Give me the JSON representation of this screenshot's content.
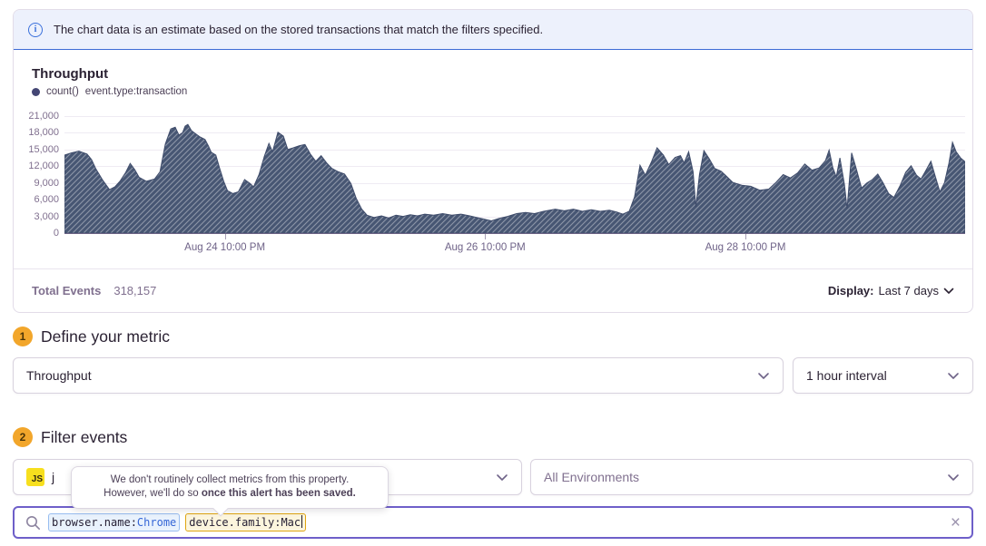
{
  "banner": {
    "text": "The chart data is an estimate based on the stored transactions that match the filters specified.",
    "icon": "info-icon"
  },
  "chart_panel": {
    "title": "Throughput",
    "legend": {
      "series_label": "count()",
      "filter_label": "event.type:transaction"
    },
    "footer": {
      "total_label": "Total Events",
      "total_value": "318,157",
      "display_label": "Display:",
      "display_value": "Last 7 days",
      "display_chevron": "chevron-down-icon"
    }
  },
  "chart_data": {
    "type": "area",
    "title": "Throughput",
    "ylabel": "",
    "xlabel": "",
    "ylim": [
      0,
      21000
    ],
    "y_ticks": [
      0,
      3000,
      6000,
      9000,
      12000,
      15000,
      18000,
      21000
    ],
    "y_tick_labels": [
      "0",
      "3,000",
      "6,000",
      "9,000",
      "12,000",
      "15,000",
      "18,000",
      "21,000"
    ],
    "x_ticks": [
      {
        "label": "Aug 24 10:00 PM",
        "pos": 0.178
      },
      {
        "label": "Aug 26 10:00 PM",
        "pos": 0.467
      },
      {
        "label": "Aug 28 10:00 PM",
        "pos": 0.756
      }
    ],
    "grid": "horizontal",
    "legend_position": "top-left",
    "style": {
      "fill": "#475673",
      "hatch": true,
      "hatch_color": "rgba(255,255,255,0.38)"
    },
    "series": [
      {
        "name": "count() event.type:transaction",
        "points": [
          [
            0.0,
            14000
          ],
          [
            0.008,
            14400
          ],
          [
            0.016,
            14700
          ],
          [
            0.025,
            14200
          ],
          [
            0.03,
            13200
          ],
          [
            0.035,
            11500
          ],
          [
            0.042,
            9600
          ],
          [
            0.05,
            7800
          ],
          [
            0.056,
            8300
          ],
          [
            0.062,
            9400
          ],
          [
            0.068,
            10900
          ],
          [
            0.073,
            12500
          ],
          [
            0.078,
            11400
          ],
          [
            0.083,
            10000
          ],
          [
            0.091,
            9300
          ],
          [
            0.1,
            9700
          ],
          [
            0.106,
            11000
          ],
          [
            0.112,
            16000
          ],
          [
            0.118,
            18700
          ],
          [
            0.123,
            19000
          ],
          [
            0.127,
            17600
          ],
          [
            0.131,
            18000
          ],
          [
            0.134,
            19200
          ],
          [
            0.137,
            19500
          ],
          [
            0.141,
            18400
          ],
          [
            0.145,
            17900
          ],
          [
            0.15,
            17300
          ],
          [
            0.156,
            16800
          ],
          [
            0.16,
            15600
          ],
          [
            0.163,
            14500
          ],
          [
            0.168,
            14000
          ],
          [
            0.172,
            11800
          ],
          [
            0.177,
            9200
          ],
          [
            0.181,
            7600
          ],
          [
            0.187,
            7100
          ],
          [
            0.193,
            7400
          ],
          [
            0.2,
            9600
          ],
          [
            0.206,
            8900
          ],
          [
            0.21,
            8300
          ],
          [
            0.216,
            10500
          ],
          [
            0.222,
            13800
          ],
          [
            0.227,
            16100
          ],
          [
            0.231,
            14600
          ],
          [
            0.237,
            18100
          ],
          [
            0.243,
            17400
          ],
          [
            0.248,
            15000
          ],
          [
            0.254,
            15300
          ],
          [
            0.261,
            15700
          ],
          [
            0.267,
            15900
          ],
          [
            0.273,
            14200
          ],
          [
            0.279,
            12900
          ],
          [
            0.285,
            13900
          ],
          [
            0.291,
            12600
          ],
          [
            0.297,
            11600
          ],
          [
            0.304,
            11000
          ],
          [
            0.311,
            10600
          ],
          [
            0.318,
            8900
          ],
          [
            0.324,
            6200
          ],
          [
            0.33,
            4300
          ],
          [
            0.336,
            3200
          ],
          [
            0.344,
            2800
          ],
          [
            0.352,
            3100
          ],
          [
            0.36,
            2700
          ],
          [
            0.368,
            3200
          ],
          [
            0.376,
            3000
          ],
          [
            0.384,
            3300
          ],
          [
            0.392,
            3100
          ],
          [
            0.4,
            3400
          ],
          [
            0.41,
            3200
          ],
          [
            0.42,
            3500
          ],
          [
            0.43,
            3200
          ],
          [
            0.44,
            3400
          ],
          [
            0.45,
            3100
          ],
          [
            0.458,
            2800
          ],
          [
            0.466,
            2500
          ],
          [
            0.474,
            2200
          ],
          [
            0.482,
            2600
          ],
          [
            0.492,
            3000
          ],
          [
            0.502,
            3500
          ],
          [
            0.512,
            3700
          ],
          [
            0.522,
            3500
          ],
          [
            0.532,
            3900
          ],
          [
            0.545,
            4300
          ],
          [
            0.555,
            4000
          ],
          [
            0.565,
            4300
          ],
          [
            0.575,
            3900
          ],
          [
            0.585,
            4200
          ],
          [
            0.595,
            3900
          ],
          [
            0.605,
            4100
          ],
          [
            0.613,
            3800
          ],
          [
            0.62,
            3400
          ],
          [
            0.627,
            3900
          ],
          [
            0.633,
            6500
          ],
          [
            0.639,
            12200
          ],
          [
            0.645,
            10400
          ],
          [
            0.652,
            12900
          ],
          [
            0.658,
            15300
          ],
          [
            0.665,
            14000
          ],
          [
            0.671,
            12300
          ],
          [
            0.678,
            13600
          ],
          [
            0.684,
            13900
          ],
          [
            0.688,
            12600
          ],
          [
            0.693,
            14600
          ],
          [
            0.698,
            11000
          ],
          [
            0.701,
            4700
          ],
          [
            0.705,
            10500
          ],
          [
            0.71,
            14800
          ],
          [
            0.716,
            13300
          ],
          [
            0.722,
            11600
          ],
          [
            0.729,
            11100
          ],
          [
            0.735,
            10200
          ],
          [
            0.742,
            9100
          ],
          [
            0.752,
            8600
          ],
          [
            0.762,
            8400
          ],
          [
            0.772,
            7700
          ],
          [
            0.782,
            7900
          ],
          [
            0.79,
            9100
          ],
          [
            0.798,
            10500
          ],
          [
            0.806,
            9900
          ],
          [
            0.814,
            10800
          ],
          [
            0.822,
            12400
          ],
          [
            0.83,
            11300
          ],
          [
            0.838,
            11700
          ],
          [
            0.845,
            13000
          ],
          [
            0.849,
            14900
          ],
          [
            0.853,
            11800
          ],
          [
            0.857,
            10100
          ],
          [
            0.861,
            13500
          ],
          [
            0.866,
            8700
          ],
          [
            0.869,
            4400
          ],
          [
            0.874,
            14400
          ],
          [
            0.879,
            11600
          ],
          [
            0.885,
            8100
          ],
          [
            0.891,
            9000
          ],
          [
            0.897,
            9600
          ],
          [
            0.903,
            10600
          ],
          [
            0.909,
            9000
          ],
          [
            0.915,
            7100
          ],
          [
            0.921,
            6400
          ],
          [
            0.928,
            8600
          ],
          [
            0.934,
            10900
          ],
          [
            0.94,
            12100
          ],
          [
            0.946,
            10400
          ],
          [
            0.951,
            9700
          ],
          [
            0.957,
            11400
          ],
          [
            0.962,
            12900
          ],
          [
            0.967,
            10100
          ],
          [
            0.972,
            7400
          ],
          [
            0.977,
            9000
          ],
          [
            0.982,
            12500
          ],
          [
            0.986,
            16300
          ],
          [
            0.99,
            14600
          ],
          [
            0.995,
            13500
          ],
          [
            1.0,
            12800
          ]
        ]
      }
    ]
  },
  "sections": {
    "metric": {
      "number": "1",
      "title": "Define your metric",
      "metric_select_value": "Throughput",
      "interval_select_value": "1 hour interval"
    },
    "filter": {
      "number": "2",
      "title": "Filter events",
      "project_badge": "JS",
      "project_label_visible": "j",
      "environment_select_value": "All Environments"
    }
  },
  "tooltip": {
    "line1": "We don't routinely collect metrics from this property.",
    "line2_regular": "However, we'll do so ",
    "line2_bold": "once this alert has been saved."
  },
  "search": {
    "tokens": [
      {
        "key": "browser.name:",
        "value": "Chrome",
        "style": "blue"
      },
      {
        "key": "device.family:",
        "value": "Mac",
        "style": "warning"
      }
    ],
    "clear_label": "×"
  },
  "colors": {
    "accent_purple": "#6e5fc9",
    "banner_blue": "#3a70db",
    "banner_bg": "#edf1fc",
    "chart_fill": "#475673",
    "legend_dot": "#444674",
    "step_circle": "#f2a62b",
    "js_badge": "#f7df1e",
    "warn_token_border": "#dfa511",
    "blue_token_border": "#98bdf0",
    "muted_text": "#80708f"
  }
}
